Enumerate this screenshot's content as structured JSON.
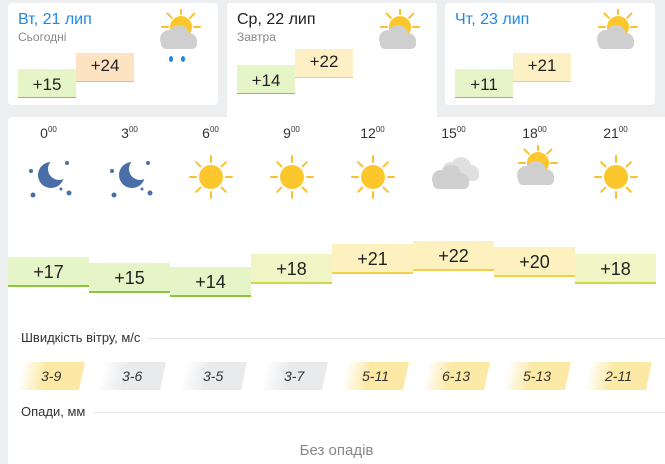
{
  "days": [
    {
      "label": "Вт, 21 лип",
      "sub": "Сьогодні",
      "min": "+15",
      "max": "+24",
      "icon": "sun-cloud-rain-icon",
      "color": "#1e88e5"
    },
    {
      "label": "Ср, 22 лип",
      "sub": "Завтра",
      "min": "+14",
      "max": "+22",
      "icon": "sun-cloud-icon",
      "color": "#222222"
    },
    {
      "label": "Чт, 23 лип",
      "sub": "",
      "min": "+11",
      "max": "+21",
      "icon": "sun-cloud-icon",
      "color": "#1e88e5"
    }
  ],
  "hourly": [
    {
      "hour": "0",
      "min": "00",
      "icon": "moon-stars-icon",
      "temp": "+17",
      "t": 17,
      "wind": "3-9",
      "windLevel": "high"
    },
    {
      "hour": "3",
      "min": "00",
      "icon": "moon-stars-icon",
      "temp": "+15",
      "t": 15,
      "wind": "3-6",
      "windLevel": "low"
    },
    {
      "hour": "6",
      "min": "00",
      "icon": "sun-icon",
      "temp": "+14",
      "t": 14,
      "wind": "3-5",
      "windLevel": "low"
    },
    {
      "hour": "9",
      "min": "00",
      "icon": "sun-icon",
      "temp": "+18",
      "t": 18,
      "wind": "3-7",
      "windLevel": "low"
    },
    {
      "hour": "12",
      "min": "00",
      "icon": "sun-icon",
      "temp": "+21",
      "t": 21,
      "wind": "5-11",
      "windLevel": "high"
    },
    {
      "hour": "15",
      "min": "00",
      "icon": "cloud-icon",
      "temp": "+22",
      "t": 22,
      "wind": "6-13",
      "windLevel": "high"
    },
    {
      "hour": "18",
      "min": "00",
      "icon": "sun-cloud-icon",
      "temp": "+20",
      "t": 20,
      "wind": "5-13",
      "windLevel": "high"
    },
    {
      "hour": "21",
      "min": "00",
      "icon": "sun-icon",
      "temp": "+18",
      "t": 18,
      "wind": "2-11",
      "windLevel": "high"
    }
  ],
  "wind_label": "Швидкість вітру, м/с",
  "precip_label": "Опади, мм",
  "precip_value": "Без опадів"
}
